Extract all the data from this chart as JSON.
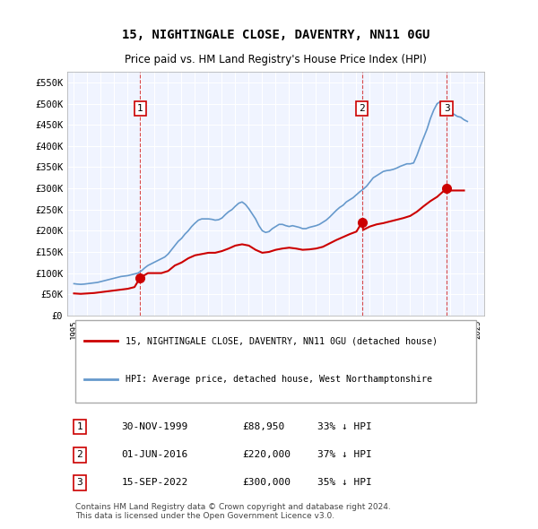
{
  "title": "15, NIGHTINGALE CLOSE, DAVENTRY, NN11 0GU",
  "subtitle": "Price paid vs. HM Land Registry's House Price Index (HPI)",
  "legend_label_red": "15, NIGHTINGALE CLOSE, DAVENTRY, NN11 0GU (detached house)",
  "legend_label_blue": "HPI: Average price, detached house, West Northamptonshire",
  "footer_line1": "Contains HM Land Registry data © Crown copyright and database right 2024.",
  "footer_line2": "This data is licensed under the Open Government Licence v3.0.",
  "table_entries": [
    {
      "num": "1",
      "date": "30-NOV-1999",
      "price": "£88,950",
      "hpi": "33% ↓ HPI"
    },
    {
      "num": "2",
      "date": "01-JUN-2016",
      "price": "£220,000",
      "hpi": "37% ↓ HPI"
    },
    {
      "num": "3",
      "date": "15-SEP-2022",
      "price": "£300,000",
      "hpi": "35% ↓ HPI"
    }
  ],
  "sale_points": [
    {
      "year": 1999.917,
      "price": 88950,
      "label": "1"
    },
    {
      "year": 2016.417,
      "price": 220000,
      "label": "2"
    },
    {
      "year": 2022.708,
      "price": 300000,
      "label": "3"
    }
  ],
  "sale_vlines": [
    1999.917,
    2016.417,
    2022.708
  ],
  "hpi_data": {
    "years": [
      1995.0,
      1995.25,
      1995.5,
      1995.75,
      1996.0,
      1996.25,
      1996.5,
      1996.75,
      1997.0,
      1997.25,
      1997.5,
      1997.75,
      1998.0,
      1998.25,
      1998.5,
      1998.75,
      1999.0,
      1999.25,
      1999.5,
      1999.75,
      2000.0,
      2000.25,
      2000.5,
      2000.75,
      2001.0,
      2001.25,
      2001.5,
      2001.75,
      2002.0,
      2002.25,
      2002.5,
      2002.75,
      2003.0,
      2003.25,
      2003.5,
      2003.75,
      2004.0,
      2004.25,
      2004.5,
      2004.75,
      2005.0,
      2005.25,
      2005.5,
      2005.75,
      2006.0,
      2006.25,
      2006.5,
      2006.75,
      2007.0,
      2007.25,
      2007.5,
      2007.75,
      2008.0,
      2008.25,
      2008.5,
      2008.75,
      2009.0,
      2009.25,
      2009.5,
      2009.75,
      2010.0,
      2010.25,
      2010.5,
      2010.75,
      2011.0,
      2011.25,
      2011.5,
      2011.75,
      2012.0,
      2012.25,
      2012.5,
      2012.75,
      2013.0,
      2013.25,
      2013.5,
      2013.75,
      2014.0,
      2014.25,
      2014.5,
      2014.75,
      2015.0,
      2015.25,
      2015.5,
      2015.75,
      2016.0,
      2016.25,
      2016.5,
      2016.75,
      2017.0,
      2017.25,
      2017.5,
      2017.75,
      2018.0,
      2018.25,
      2018.5,
      2018.75,
      2019.0,
      2019.25,
      2019.5,
      2019.75,
      2020.0,
      2020.25,
      2020.5,
      2020.75,
      2021.0,
      2021.25,
      2021.5,
      2021.75,
      2022.0,
      2022.25,
      2022.5,
      2022.75,
      2023.0,
      2023.25,
      2023.5,
      2023.75,
      2024.0,
      2024.25
    ],
    "values": [
      75000,
      74000,
      73500,
      74000,
      75000,
      76000,
      77000,
      78000,
      80000,
      82000,
      84000,
      86000,
      88000,
      90000,
      92000,
      93000,
      94000,
      96000,
      98000,
      100000,
      105000,
      112000,
      118000,
      122000,
      126000,
      130000,
      134000,
      138000,
      145000,
      155000,
      165000,
      175000,
      182000,
      192000,
      200000,
      210000,
      218000,
      225000,
      228000,
      228000,
      228000,
      227000,
      225000,
      226000,
      230000,
      238000,
      245000,
      250000,
      258000,
      265000,
      268000,
      262000,
      252000,
      240000,
      228000,
      212000,
      200000,
      196000,
      198000,
      205000,
      210000,
      215000,
      215000,
      212000,
      210000,
      212000,
      210000,
      208000,
      205000,
      205000,
      208000,
      210000,
      212000,
      215000,
      220000,
      225000,
      232000,
      240000,
      248000,
      255000,
      260000,
      268000,
      273000,
      278000,
      285000,
      292000,
      298000,
      305000,
      315000,
      325000,
      330000,
      335000,
      340000,
      342000,
      343000,
      345000,
      348000,
      352000,
      355000,
      358000,
      358000,
      360000,
      378000,
      400000,
      420000,
      440000,
      465000,
      485000,
      500000,
      505000,
      498000,
      490000,
      480000,
      475000,
      470000,
      468000,
      462000,
      458000
    ]
  },
  "price_paid_data": {
    "years": [
      1995.0,
      1995.5,
      1996.0,
      1996.5,
      1997.0,
      1997.5,
      1998.0,
      1998.5,
      1999.0,
      1999.5,
      1999.917,
      2000.5,
      2001.0,
      2001.5,
      2002.0,
      2002.5,
      2003.0,
      2003.5,
      2004.0,
      2004.5,
      2005.0,
      2005.5,
      2006.0,
      2006.5,
      2007.0,
      2007.5,
      2008.0,
      2008.5,
      2009.0,
      2009.5,
      2010.0,
      2010.5,
      2011.0,
      2011.5,
      2012.0,
      2012.5,
      2013.0,
      2013.5,
      2014.0,
      2014.5,
      2015.0,
      2015.5,
      2016.0,
      2016.417,
      2016.5,
      2017.0,
      2017.5,
      2018.0,
      2018.5,
      2019.0,
      2019.5,
      2020.0,
      2020.5,
      2021.0,
      2021.5,
      2022.0,
      2022.708,
      2023.0,
      2023.5,
      2024.0
    ],
    "values": [
      52000,
      51000,
      52000,
      53000,
      55000,
      57000,
      59000,
      61000,
      63000,
      67000,
      88950,
      100000,
      100000,
      100000,
      105000,
      118000,
      125000,
      135000,
      142000,
      145000,
      148000,
      148000,
      152000,
      158000,
      165000,
      168000,
      165000,
      155000,
      148000,
      150000,
      155000,
      158000,
      160000,
      158000,
      155000,
      156000,
      158000,
      162000,
      170000,
      178000,
      185000,
      192000,
      198000,
      220000,
      202000,
      210000,
      215000,
      218000,
      222000,
      226000,
      230000,
      235000,
      245000,
      258000,
      270000,
      280000,
      300000,
      295000,
      295000,
      295000
    ]
  },
  "ylim": [
    0,
    575000
  ],
  "xlim": [
    1994.5,
    2025.5
  ],
  "yticks": [
    0,
    50000,
    100000,
    150000,
    200000,
    250000,
    300000,
    350000,
    400000,
    450000,
    500000,
    550000
  ],
  "ytick_labels": [
    "£0",
    "£50K",
    "£100K",
    "£150K",
    "£200K",
    "£250K",
    "£300K",
    "£350K",
    "£400K",
    "£450K",
    "£500K",
    "£550K"
  ],
  "xtick_years": [
    1995,
    1996,
    1997,
    1998,
    1999,
    2000,
    2001,
    2002,
    2003,
    2004,
    2005,
    2006,
    2007,
    2008,
    2009,
    2010,
    2011,
    2012,
    2013,
    2014,
    2015,
    2016,
    2017,
    2018,
    2019,
    2020,
    2021,
    2022,
    2023,
    2024,
    2025
  ],
  "bg_color": "#f0f4ff",
  "grid_color": "#ffffff",
  "red_color": "#cc0000",
  "blue_color": "#6699cc",
  "vline_color": "#cc0000",
  "sale_marker_color": "#cc0000"
}
